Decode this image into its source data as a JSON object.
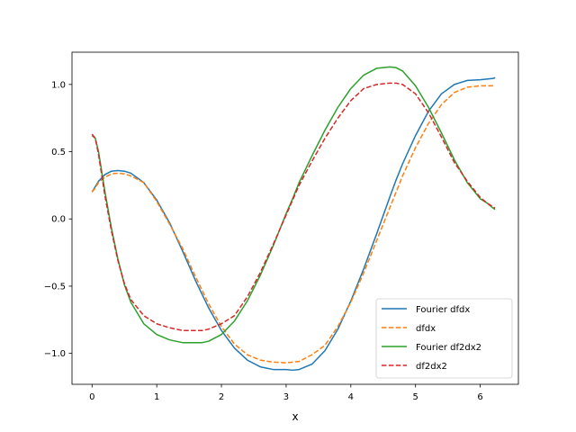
{
  "chart_data": {
    "type": "line",
    "title": "",
    "xlabel": "x",
    "ylabel": "",
    "xlim": [
      -0.31,
      6.59
    ],
    "ylim": [
      -1.23,
      1.24
    ],
    "xticks": [
      0,
      1,
      2,
      3,
      4,
      5,
      6
    ],
    "xtick_labels": [
      "0",
      "1",
      "2",
      "3",
      "4",
      "5",
      "6"
    ],
    "yticks": [
      -1.0,
      -0.5,
      0.0,
      0.5,
      1.0
    ],
    "ytick_labels": [
      "−1.0",
      "−0.5",
      "0.0",
      "0.5",
      "1.0"
    ],
    "grid": false,
    "legend_position": "lower-right",
    "x": [
      0.0,
      0.05,
      0.1,
      0.2,
      0.3,
      0.4,
      0.5,
      0.6,
      0.8,
      1.0,
      1.2,
      1.4,
      1.6,
      1.7,
      1.8,
      2.0,
      2.2,
      2.4,
      2.6,
      2.8,
      3.0,
      3.1,
      3.2,
      3.4,
      3.6,
      3.8,
      4.0,
      4.2,
      4.4,
      4.6,
      4.7,
      4.8,
      5.0,
      5.2,
      5.4,
      5.6,
      5.8,
      6.0,
      6.1,
      6.2,
      6.23
    ],
    "series": [
      {
        "name": "Fourier dfdx",
        "color": "#1f77b4",
        "dash": "solid",
        "values": [
          0.2,
          0.24,
          0.28,
          0.33,
          0.355,
          0.36,
          0.355,
          0.34,
          0.27,
          0.14,
          -0.03,
          -0.24,
          -0.46,
          -0.56,
          -0.66,
          -0.83,
          -0.96,
          -1.05,
          -1.1,
          -1.12,
          -1.12,
          -1.125,
          -1.12,
          -1.08,
          -0.98,
          -0.82,
          -0.61,
          -0.37,
          -0.11,
          0.16,
          0.29,
          0.41,
          0.62,
          0.8,
          0.93,
          1.0,
          1.03,
          1.035,
          1.04,
          1.045,
          1.05
        ]
      },
      {
        "name": "dfdx",
        "color": "#ff7f0e",
        "dash": "dashed",
        "values": [
          0.2,
          0.23,
          0.27,
          0.31,
          0.335,
          0.34,
          0.335,
          0.32,
          0.27,
          0.13,
          -0.04,
          -0.22,
          -0.43,
          -0.53,
          -0.63,
          -0.8,
          -0.93,
          -1.01,
          -1.05,
          -1.065,
          -1.07,
          -1.065,
          -1.06,
          -1.01,
          -0.94,
          -0.8,
          -0.62,
          -0.4,
          -0.16,
          0.08,
          0.2,
          0.32,
          0.53,
          0.71,
          0.85,
          0.94,
          0.98,
          0.99,
          0.99,
          0.99,
          0.99
        ]
      },
      {
        "name": "Fourier df2dx2",
        "color": "#2ca02c",
        "dash": "solid",
        "values": [
          0.62,
          0.6,
          0.5,
          0.2,
          -0.07,
          -0.3,
          -0.49,
          -0.62,
          -0.78,
          -0.86,
          -0.9,
          -0.92,
          -0.92,
          -0.92,
          -0.91,
          -0.86,
          -0.76,
          -0.61,
          -0.42,
          -0.2,
          0.04,
          0.15,
          0.27,
          0.47,
          0.66,
          0.83,
          0.97,
          1.07,
          1.12,
          1.13,
          1.125,
          1.1,
          0.99,
          0.83,
          0.64,
          0.44,
          0.27,
          0.15,
          0.12,
          0.08,
          0.07
        ]
      },
      {
        "name": "df2dx2",
        "color": "#d62728",
        "dash": "dashed",
        "values": [
          0.63,
          0.6,
          0.48,
          0.17,
          -0.09,
          -0.31,
          -0.48,
          -0.6,
          -0.72,
          -0.78,
          -0.81,
          -0.83,
          -0.83,
          -0.83,
          -0.82,
          -0.78,
          -0.72,
          -0.58,
          -0.4,
          -0.19,
          0.03,
          0.14,
          0.25,
          0.43,
          0.6,
          0.75,
          0.88,
          0.97,
          1.0,
          1.01,
          1.01,
          1.0,
          0.93,
          0.79,
          0.61,
          0.42,
          0.28,
          0.16,
          0.12,
          0.09,
          0.08
        ]
      }
    ]
  }
}
